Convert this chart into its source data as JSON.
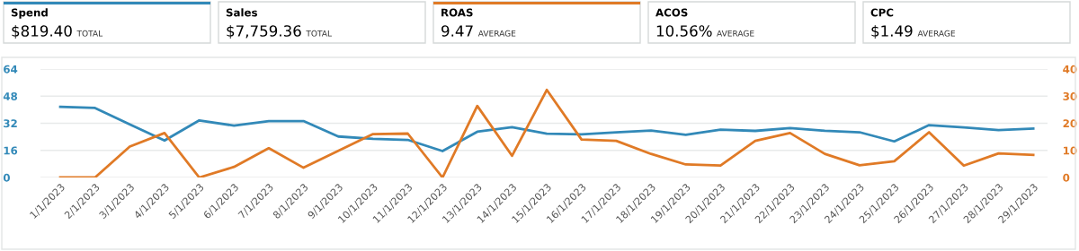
{
  "chart_data": {
    "type": "line",
    "annotations": [
      "Spend",
      "$819.40",
      "TOTAL",
      "Sales",
      "$7,759.36",
      "TOTAL",
      "ROAS",
      "9.47",
      "AVERAGE",
      "ACOS",
      "10.56%",
      "AVERAGE",
      "CPC",
      "$1.49",
      "AVERAGE"
    ],
    "categories": [
      "1/1/2023",
      "2/1/2023",
      "3/1/2023",
      "4/1/2023",
      "5/1/2023",
      "6/1/2023",
      "7/1/2023",
      "8/1/2023",
      "9/1/2023",
      "10/1/2023",
      "11/1/2023",
      "12/1/2023",
      "13/1/2023",
      "14/1/2023",
      "15/1/2023",
      "16/1/2023",
      "17/1/2023",
      "18/1/2023",
      "19/1/2023",
      "20/1/2023",
      "21/1/2023",
      "22/1/2023",
      "23/1/2023",
      "24/1/2023",
      "25/1/2023",
      "26/1/2023",
      "27/1/2023",
      "28/1/2023",
      "29/1/2023"
    ],
    "series": [
      {
        "color": "#3289b8",
        "values": [
          41.7,
          41.0,
          31.4,
          21.8,
          33.7,
          30.6,
          33.3,
          33.3,
          24.2,
          22.8,
          22.2,
          15.6,
          27.0,
          29.7,
          25.9,
          25.5,
          26.6,
          27.7,
          25.2,
          28.2,
          27.5,
          29.2,
          27.6,
          26.7,
          21.3,
          30.9,
          29.6,
          28.0,
          28.9
        ]
      },
      {
        "color": "#e07a26",
        "axis": "y2",
        "values": [
          0,
          0,
          11.4,
          16.4,
          0,
          3.9,
          10.8,
          3.6,
          9.8,
          16.0,
          16.2,
          0,
          26.4,
          8.0,
          32.3,
          14.0,
          13.5,
          8.7,
          4.8,
          4.4,
          13.5,
          16.4,
          8.7,
          4.5,
          6.0,
          16.7,
          4.4,
          8.9,
          8.3
        ]
      }
    ],
    "ylim": [
      0,
      64
    ],
    "yticks": [
      0,
      16,
      32,
      48,
      64
    ],
    "y2lim": [
      0,
      40
    ],
    "y2ticks": [
      0,
      10,
      20,
      30,
      40
    ],
    "grid": "y",
    "marker": "none",
    "line_style": "solid"
  }
}
